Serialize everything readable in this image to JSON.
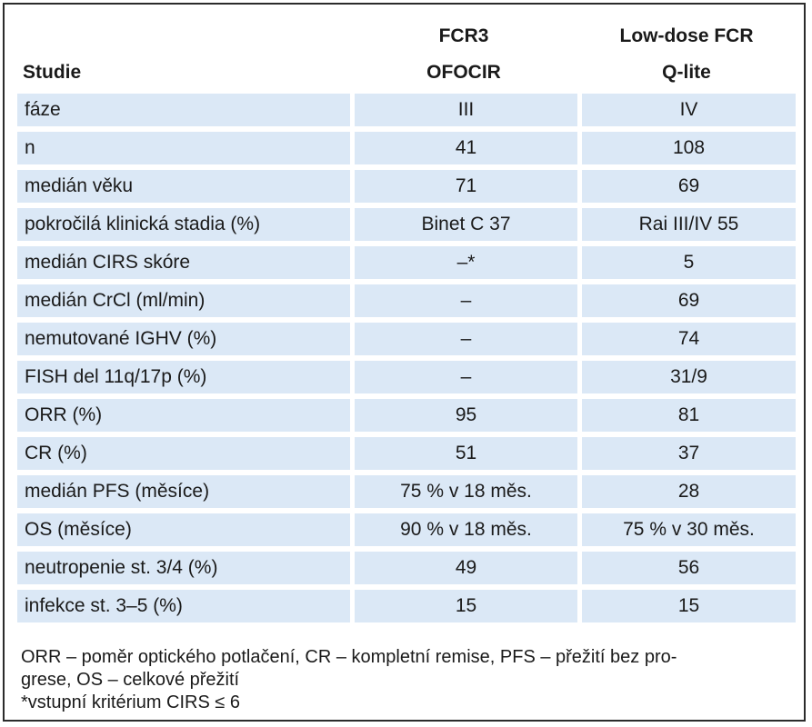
{
  "table": {
    "header_top": {
      "col2": "FCR3",
      "col3": "Low-dose FCR"
    },
    "header_bottom": {
      "col1": "Studie",
      "col2": "OFOCIR",
      "col3": "Q-lite"
    },
    "rows": [
      {
        "label": "fáze",
        "fcr3": "III",
        "lowdose": "IV"
      },
      {
        "label": "n",
        "fcr3": "41",
        "lowdose": "108"
      },
      {
        "label": "medián věku",
        "fcr3": "71",
        "lowdose": "69"
      },
      {
        "label": "pokročilá klinická stadia (%)",
        "fcr3": "Binet C 37",
        "lowdose": "Rai III/IV 55"
      },
      {
        "label": "medián CIRS skóre",
        "fcr3": "–*",
        "lowdose": "5"
      },
      {
        "label": "medián CrCl (ml/min)",
        "fcr3": "–",
        "lowdose": "69"
      },
      {
        "label": "nemutované IGHV (%)",
        "fcr3": "–",
        "lowdose": "74"
      },
      {
        "label": "FISH del 11q/17p (%)",
        "fcr3": "–",
        "lowdose": "31/9"
      },
      {
        "label": "ORR (%)",
        "fcr3": "95",
        "lowdose": "81"
      },
      {
        "label": "CR (%)",
        "fcr3": "51",
        "lowdose": "37"
      },
      {
        "label": "medián PFS (měsíce)",
        "fcr3": "75 % v 18 měs.",
        "lowdose": "28"
      },
      {
        "label": "OS (měsíce)",
        "fcr3": "90 % v 18 měs.",
        "lowdose": "75 % v 30 měs."
      },
      {
        "label": "neutropenie st. 3/4 (%)",
        "fcr3": "49",
        "lowdose": "56"
      },
      {
        "label": "infekce st. 3–5 (%)",
        "fcr3": "15",
        "lowdose": "15"
      }
    ]
  },
  "notes": {
    "line1": "ORR – poměr optického potlačení, CR – kompletní remise, PFS – přežití bez pro-",
    "line2": "grese, OS – celkové přežití",
    "line3": "*vstupní kritérium CIRS ≤ 6"
  },
  "colors": {
    "row_fill": "#dbe8f6",
    "border": "#2b2b2b"
  }
}
